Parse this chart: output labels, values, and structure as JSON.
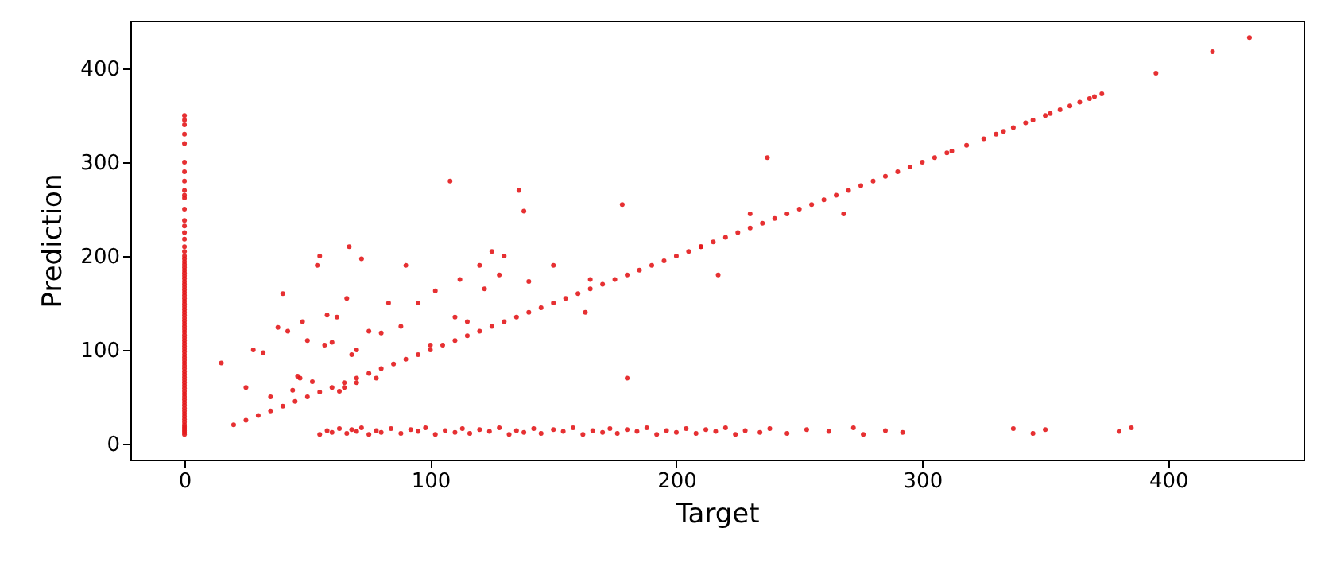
{
  "chart_data": {
    "type": "scatter",
    "xlabel": "Target",
    "ylabel": "Prediction",
    "xlim": [
      -22,
      455
    ],
    "ylim": [
      -17,
      451
    ],
    "xticks": [
      0,
      100,
      200,
      300,
      400
    ],
    "yticks": [
      0,
      100,
      200,
      300,
      400
    ],
    "grid": false,
    "marker": "circle",
    "series": [
      {
        "color": "#e31a1c",
        "x": [
          0,
          0,
          0,
          0,
          0,
          0,
          0,
          0,
          0,
          0,
          0,
          0,
          0,
          0,
          0,
          0,
          0,
          0,
          0,
          0,
          0,
          0,
          0,
          0,
          0,
          0,
          0,
          0,
          0,
          0,
          0,
          0,
          0,
          0,
          0,
          0,
          0,
          0,
          0,
          0,
          0,
          0,
          0,
          0,
          0,
          0,
          0,
          0,
          0,
          0,
          0,
          0,
          0,
          0,
          0,
          0,
          0,
          0,
          0,
          0,
          0,
          0,
          0,
          0,
          0,
          0,
          0,
          0,
          0,
          0,
          0,
          0,
          0,
          0,
          0,
          0,
          0,
          0,
          0,
          0,
          0,
          0,
          0,
          0,
          15,
          25,
          28,
          32,
          35,
          38,
          40,
          42,
          44,
          46,
          47,
          48,
          50,
          52,
          54,
          55,
          57,
          58,
          60,
          62,
          63,
          65,
          66,
          67,
          68,
          70,
          70,
          72,
          75,
          78,
          80,
          83,
          88,
          90,
          95,
          100,
          102,
          108,
          110,
          112,
          115,
          120,
          122,
          125,
          128,
          130,
          136,
          138,
          140,
          150,
          163,
          165,
          178,
          180,
          210,
          217,
          230,
          237,
          268,
          20,
          25,
          30,
          35,
          40,
          45,
          50,
          55,
          60,
          65,
          70,
          75,
          80,
          85,
          90,
          95,
          100,
          105,
          110,
          115,
          120,
          125,
          130,
          135,
          140,
          145,
          150,
          155,
          160,
          165,
          170,
          175,
          180,
          185,
          190,
          195,
          200,
          205,
          210,
          215,
          220,
          225,
          230,
          235,
          240,
          245,
          250,
          255,
          260,
          265,
          270,
          275,
          280,
          285,
          290,
          295,
          300,
          305,
          310,
          312,
          318,
          325,
          330,
          333,
          337,
          342,
          345,
          350,
          352,
          356,
          360,
          364,
          368,
          370,
          373,
          395,
          418,
          433,
          55,
          58,
          60,
          63,
          66,
          68,
          70,
          72,
          75,
          78,
          80,
          84,
          88,
          92,
          95,
          98,
          102,
          106,
          110,
          113,
          116,
          120,
          124,
          128,
          132,
          135,
          138,
          142,
          145,
          150,
          154,
          158,
          162,
          166,
          170,
          173,
          176,
          180,
          184,
          188,
          192,
          196,
          200,
          204,
          208,
          212,
          216,
          220,
          224,
          228,
          234,
          238,
          245,
          253,
          262,
          272,
          276,
          285,
          292,
          337,
          345,
          350,
          380,
          385
        ],
        "values": [
          10,
          12,
          14,
          16,
          18,
          20,
          23,
          26,
          29,
          32,
          35,
          38,
          41,
          44,
          47,
          50,
          53,
          56,
          59,
          62,
          65,
          68,
          71,
          74,
          77,
          80,
          83,
          86,
          89,
          92,
          95,
          98,
          101,
          104,
          107,
          110,
          113,
          116,
          119,
          122,
          125,
          128,
          131,
          134,
          137,
          140,
          143,
          146,
          149,
          152,
          155,
          158,
          161,
          164,
          167,
          170,
          173,
          176,
          179,
          182,
          185,
          188,
          191,
          194,
          197,
          200,
          205,
          210,
          218,
          225,
          232,
          238,
          250,
          262,
          265,
          270,
          280,
          290,
          300,
          320,
          330,
          340,
          345,
          350,
          86,
          60,
          100,
          97,
          50,
          124,
          160,
          120,
          57,
          72,
          70,
          130,
          110,
          66,
          190,
          200,
          105,
          137,
          108,
          135,
          56,
          60,
          155,
          210,
          95,
          65,
          100,
          197,
          120,
          70,
          118,
          150,
          125,
          190,
          150,
          105,
          163,
          280,
          135,
          175,
          130,
          190,
          165,
          205,
          180,
          200,
          270,
          248,
          173,
          190,
          140,
          175,
          255,
          70,
          210,
          180,
          245,
          305,
          245,
          20,
          25,
          30,
          35,
          40,
          45,
          50,
          55,
          60,
          65,
          70,
          75,
          80,
          85,
          90,
          95,
          100,
          105,
          110,
          115,
          120,
          125,
          130,
          135,
          140,
          145,
          150,
          155,
          160,
          165,
          170,
          175,
          180,
          185,
          190,
          195,
          200,
          205,
          210,
          215,
          220,
          225,
          230,
          235,
          240,
          245,
          250,
          255,
          260,
          265,
          270,
          275,
          280,
          285,
          290,
          295,
          300,
          305,
          310,
          312,
          318,
          325,
          330,
          333,
          337,
          342,
          345,
          350,
          352,
          356,
          360,
          364,
          368,
          370,
          373,
          395,
          418,
          433,
          10,
          14,
          12,
          16,
          11,
          15,
          13,
          17,
          10,
          14,
          12,
          16,
          11,
          15,
          13,
          17,
          10,
          14,
          12,
          16,
          11,
          15,
          13,
          17,
          10,
          14,
          12,
          16,
          11,
          15,
          13,
          17,
          10,
          14,
          12,
          16,
          11,
          15,
          13,
          17,
          10,
          14,
          12,
          16,
          11,
          15,
          13,
          17,
          10,
          14,
          12,
          16,
          11,
          15,
          13,
          17,
          10,
          14,
          12,
          16,
          11,
          15,
          13,
          17
        ]
      }
    ]
  }
}
